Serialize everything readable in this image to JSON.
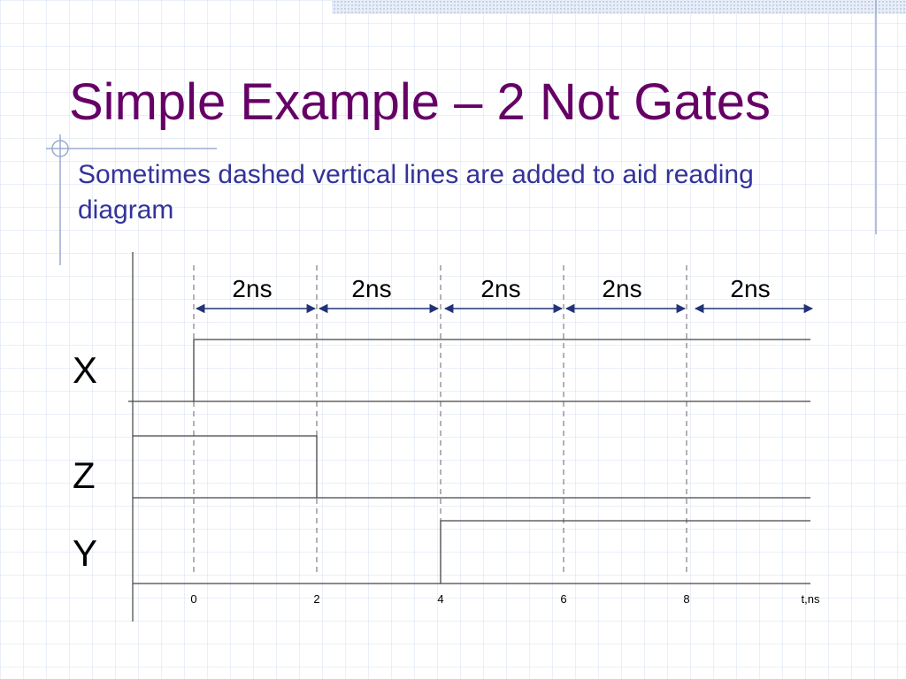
{
  "title": "Simple Example – 2 Not Gates",
  "subtitle": "Sometimes dashed vertical lines are added to aid reading diagram",
  "intervals": [
    "2ns",
    "2ns",
    "2ns",
    "2ns",
    "2ns"
  ],
  "signals": [
    "X",
    "Z",
    "Y"
  ],
  "axis": {
    "ticks": [
      "0",
      "2",
      "4",
      "6",
      "8"
    ],
    "unit": "t,ns"
  }
}
